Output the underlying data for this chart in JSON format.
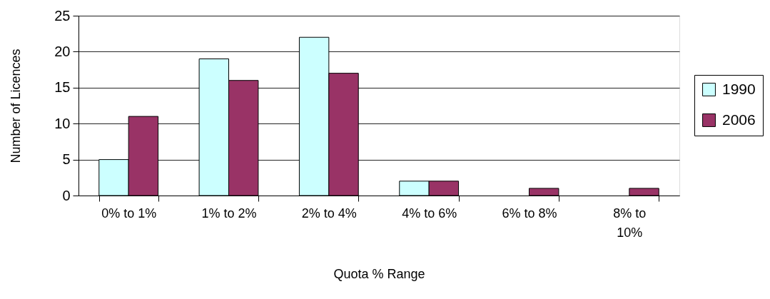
{
  "chart_data": {
    "type": "bar",
    "xlabel": "Quota % Range",
    "ylabel": "Number of Licences",
    "categories": [
      "0% to 1%",
      "1% to 2%",
      "2% to 4%",
      "4% to 6%",
      "6% to 8%",
      "8% to 10%"
    ],
    "series": [
      {
        "name": "1990",
        "color": "#ccffff",
        "values": [
          5,
          19,
          22,
          2,
          0,
          0
        ]
      },
      {
        "name": "2006",
        "color": "#993366",
        "values": [
          11,
          16,
          17,
          2,
          1,
          1
        ]
      }
    ],
    "ylim": [
      0,
      25
    ],
    "yticks": [
      0,
      5,
      10,
      15,
      20,
      25
    ],
    "grid": "y",
    "legend": "right"
  }
}
